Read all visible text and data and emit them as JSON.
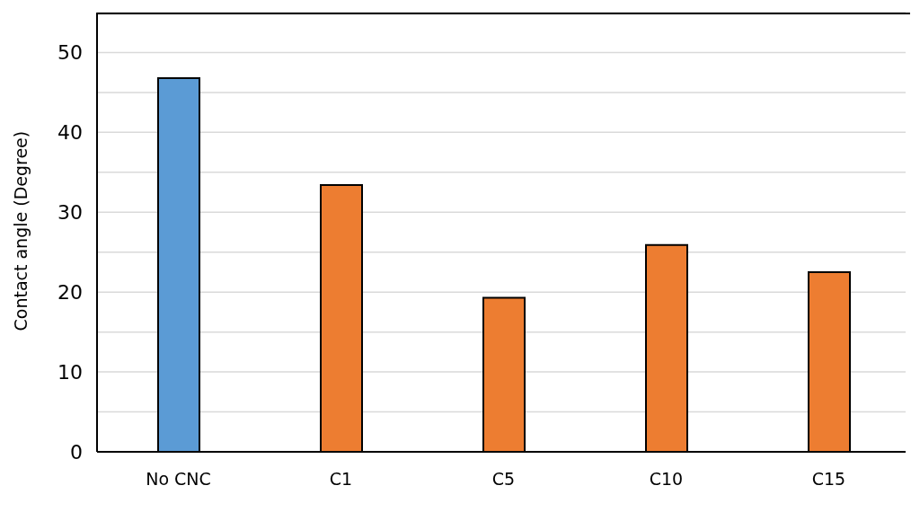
{
  "chart_data": {
    "type": "bar",
    "ylabel": "Contact angle (Degree)",
    "categories": [
      "No CNC",
      "C1",
      "C5",
      "C10",
      "C15"
    ],
    "values": [
      46.8,
      33.4,
      19.3,
      25.9,
      22.5
    ],
    "colors": [
      "#5b9bd5",
      "#ed7d31",
      "#ed7d31",
      "#ed7d31",
      "#ed7d31"
    ],
    "ylim": [
      0,
      55
    ],
    "yticks": [
      0,
      {
        "value": 5,
        "label": null
      },
      10,
      {
        "value": 15,
        "label": null
      },
      20,
      {
        "value": 25,
        "label": null
      },
      30,
      {
        "value": 35,
        "label": null
      },
      40,
      {
        "value": 45,
        "label": null
      },
      50
    ],
    "grid": true
  }
}
